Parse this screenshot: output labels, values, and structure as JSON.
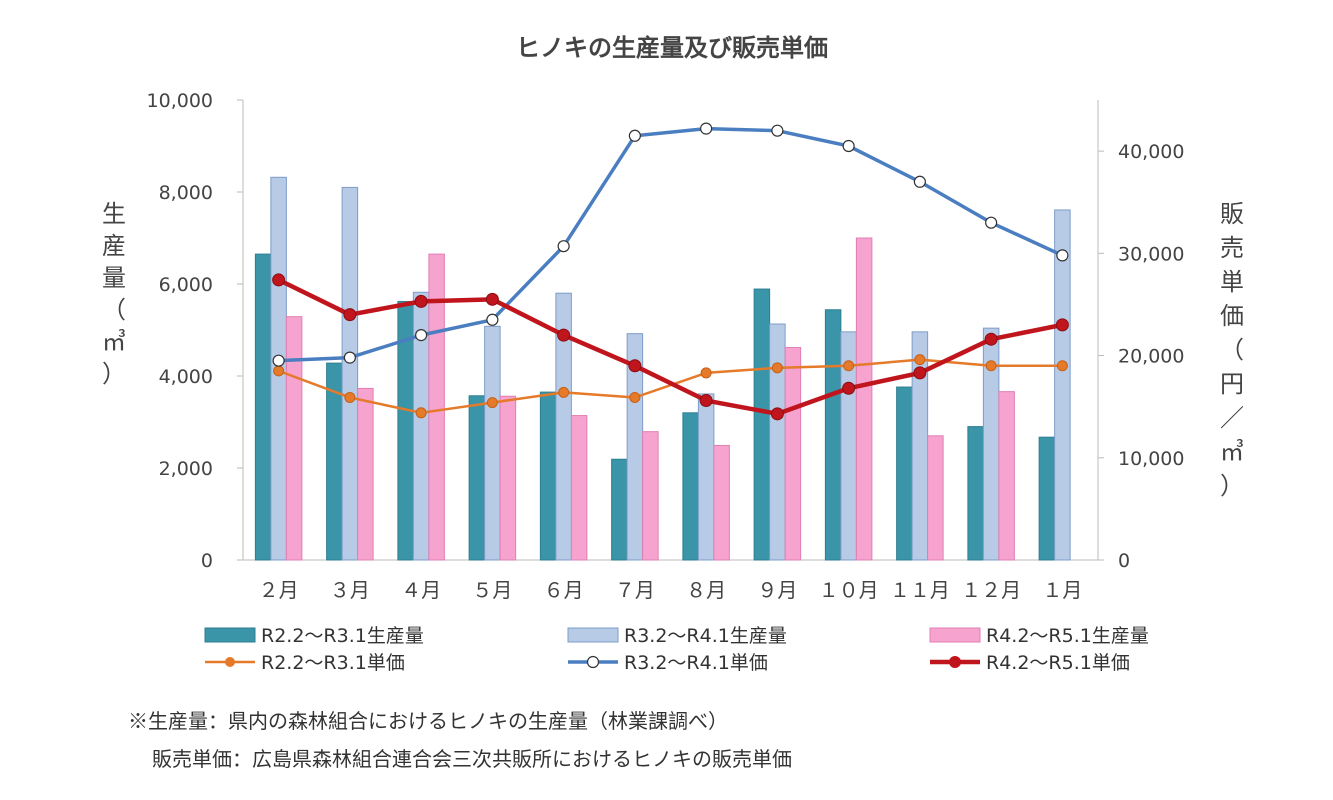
{
  "chart_data": {
    "type": "bar+line",
    "title": "ヒノキの生産量及び販売単価",
    "categories": [
      "２月",
      "３月",
      "４月",
      "５月",
      "６月",
      "７月",
      "８月",
      "９月",
      "１０月",
      "１１月",
      "１２月",
      "１月"
    ],
    "y_left": {
      "label_chars": [
        "生",
        "産",
        "量",
        "（",
        "㎥",
        "）"
      ],
      "range": [
        0,
        10000
      ],
      "ticks": [
        0,
        2000,
        4000,
        6000,
        8000,
        10000
      ],
      "tick_labels": [
        "0",
        "2,000",
        "4,000",
        "6,000",
        "8,000",
        "10,000"
      ]
    },
    "y_right": {
      "label_chars": [
        "販",
        "売",
        "単",
        "価",
        "（",
        "円",
        "／",
        "㎥",
        "）"
      ],
      "range": [
        0,
        45000
      ],
      "ticks": [
        0,
        10000,
        20000,
        30000,
        40000
      ],
      "tick_labels": [
        "0",
        "10,000",
        "20,000",
        "30,000",
        "40,000"
      ]
    },
    "bar_series": [
      {
        "name": "R2.2～R3.1生産量",
        "color": "#3a95a8",
        "values": [
          6650,
          4280,
          5620,
          3570,
          3650,
          2190,
          3200,
          5890,
          5440,
          3760,
          2900,
          2670
        ]
      },
      {
        "name": "R3.2～R4.1生産量",
        "color": "#b7cbe6",
        "values": [
          8320,
          8100,
          5820,
          5080,
          5800,
          4920,
          3610,
          5130,
          4960,
          4960,
          5040,
          7610
        ]
      },
      {
        "name": "R4.2～R5.1生産量",
        "color": "#f7a3cf",
        "values": [
          5290,
          3730,
          6650,
          3560,
          3140,
          2790,
          2490,
          4620,
          7000,
          2700,
          3660,
          null
        ]
      }
    ],
    "line_series": [
      {
        "name": "R2.2～R3.1単価",
        "color": "#e57a2a",
        "marker": "filled-small",
        "values": [
          18500,
          15900,
          14400,
          15400,
          16400,
          15900,
          18300,
          18800,
          19000,
          19600,
          19000,
          19000
        ]
      },
      {
        "name": "R3.2～R4.1単価",
        "color": "#4a7ec0",
        "marker": "hollow",
        "values": [
          19500,
          19800,
          22000,
          23500,
          30700,
          41500,
          42200,
          42000,
          40500,
          37000,
          33000,
          29800
        ]
      },
      {
        "name": "R4.2～R5.1単価",
        "color": "#c0151c",
        "marker": "filled",
        "values": [
          27400,
          24000,
          25300,
          25500,
          22000,
          19000,
          15600,
          14300,
          16800,
          18300,
          21600,
          23000
        ]
      }
    ]
  },
  "notes": [
    "※生産量：県内の森林組合におけるヒノキの生産量（林業課調べ）",
    "販売単価：広島県森林組合連合会三次共販所におけるヒノキの販売単価"
  ]
}
